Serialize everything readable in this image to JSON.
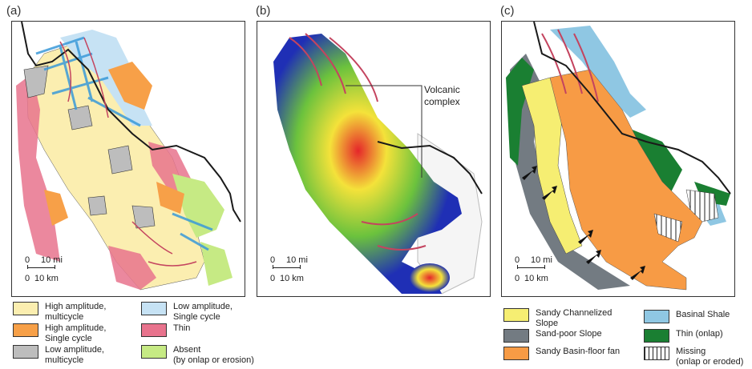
{
  "panels": [
    {
      "label": "(a)"
    },
    {
      "label": "(b)",
      "annotation": [
        "Volcanic",
        "complex"
      ]
    },
    {
      "label": "(c)"
    }
  ],
  "scale": {
    "mi_zero": "0",
    "mi_value": "10 mi",
    "km_zero": "0",
    "km_value": "10 km"
  },
  "colors": {
    "high_multi": "#fbeeb0",
    "high_single": "#f7a048",
    "low_multi": "#bdbdbd",
    "low_single": "#c6e2f4",
    "thin": "#e8738d",
    "absent": "#c6ea84",
    "sandy_channelized": "#f6ee72",
    "sand_poor_slope": "#737b82",
    "sandy_basin": "#f79b45",
    "basinal_shale": "#8fc7e3",
    "thin_onlap": "#1a7f32",
    "coast": "#1a1a1a",
    "channel": "#c4445f"
  },
  "legend_a": [
    {
      "lines": [
        "High amplitude,",
        "multicycle"
      ],
      "color_key": "high_multi"
    },
    {
      "lines": [
        "High amplitude,",
        "Single cycle"
      ],
      "color_key": "high_single"
    },
    {
      "lines": [
        "Low amplitude,",
        "multicycle"
      ],
      "color_key": "low_multi"
    },
    {
      "lines": [
        "Low amplitude,",
        "Single cycle"
      ],
      "color_key": "low_single"
    },
    {
      "lines": [
        "Thin"
      ],
      "color_key": "thin"
    },
    {
      "lines": [
        "Absent",
        "(by onlap or erosion)"
      ],
      "color_key": "absent"
    }
  ],
  "legend_c": [
    {
      "lines": [
        "Sandy Channelized",
        "Slope"
      ],
      "color_key": "sandy_channelized"
    },
    {
      "lines": [
        "Sand-poor Slope"
      ],
      "color_key": "sand_poor_slope"
    },
    {
      "lines": [
        "Sandy Basin-floor fan"
      ],
      "color_key": "sandy_basin"
    },
    {
      "lines": [
        "Basinal Shale"
      ],
      "color_key": "basinal_shale"
    },
    {
      "lines": [
        "Thin (onlap)"
      ],
      "color_key": "thin_onlap"
    },
    {
      "lines": [
        "Missing",
        "(onlap or eroded)"
      ],
      "color_key": "missing",
      "pattern": "vertical-hatch"
    }
  ]
}
